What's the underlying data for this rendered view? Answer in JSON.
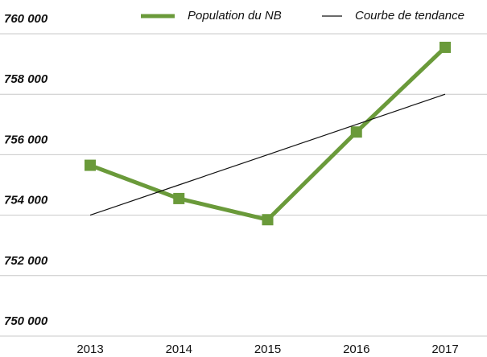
{
  "chart_data": {
    "type": "line",
    "categories": [
      "2013",
      "2014",
      "2015",
      "2016",
      "2017"
    ],
    "series": [
      {
        "name": "Population du NB",
        "color": "#6a9a3a",
        "values": [
          755650,
          754550,
          753850,
          756750,
          759550
        ]
      },
      {
        "name": "Courbe de tendance",
        "color": "#111111",
        "values": [
          754000,
          755000,
          756000,
          757000,
          758000
        ]
      }
    ],
    "ylim": [
      750000,
      760000
    ],
    "yticks": [
      {
        "value": 750000,
        "label": "750 000"
      },
      {
        "value": 752000,
        "label": "752 000"
      },
      {
        "value": 754000,
        "label": "754 000"
      },
      {
        "value": 756000,
        "label": "756 000"
      },
      {
        "value": 758000,
        "label": "758 000"
      },
      {
        "value": 760000,
        "label": "760 000"
      }
    ],
    "grid": true
  }
}
